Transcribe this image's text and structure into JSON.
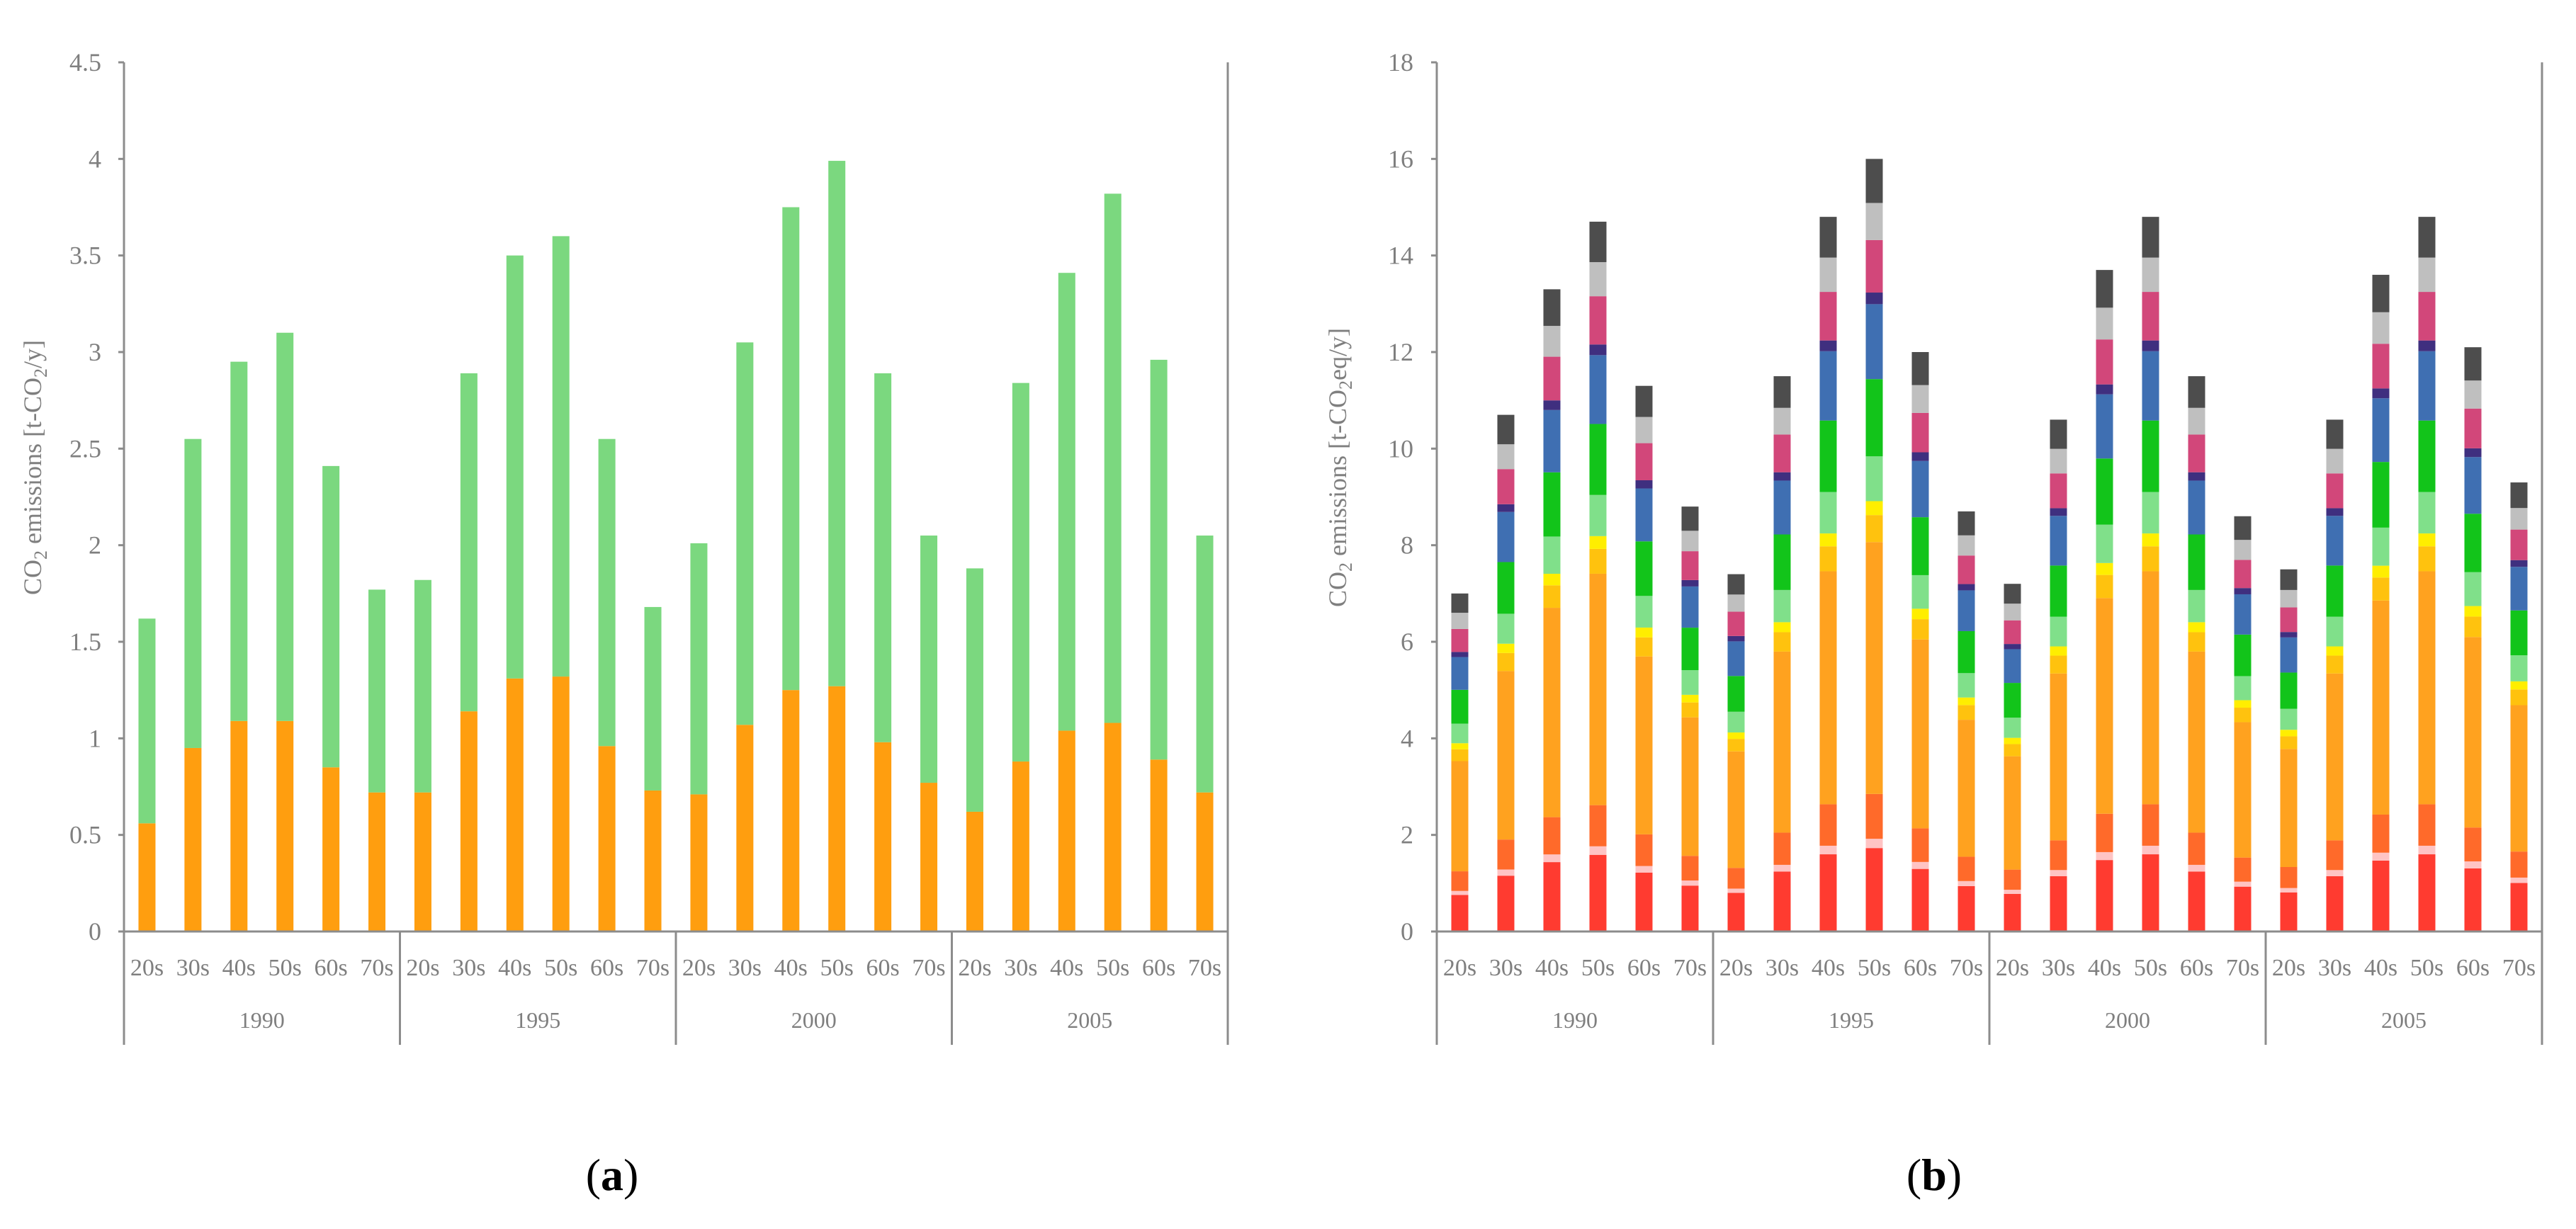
{
  "figure": {
    "panels": [
      {
        "id": "a",
        "label_open": "(",
        "label_letter": "a",
        "label_close": ")",
        "ylabel_co": "CO",
        "ylabel_sub": "2",
        "ylabel_mid": " emissions [t-CO",
        "ylabel_sub2": "2",
        "ylabel_end": "/y]"
      },
      {
        "id": "b",
        "label_open": "(",
        "label_letter": "b",
        "label_close": ")",
        "ylabel_co": "CO",
        "ylabel_sub": "2",
        "ylabel_mid": " emissions [t-CO",
        "ylabel_sub2": "2",
        "ylabel_end": "eq/y]"
      }
    ]
  },
  "chart_data": [
    {
      "type": "bar",
      "stacked": true,
      "title": "",
      "xlabel": "",
      "ylabel": "CO2 emissions [t-CO2/y]",
      "ylim": [
        0,
        4.5
      ],
      "yticks": [
        "0",
        "0.5",
        "1",
        "1.5",
        "2",
        "2.5",
        "3",
        "3.5",
        "4",
        "4.5"
      ],
      "ytick_values": [
        0,
        0.5,
        1,
        1.5,
        2,
        2.5,
        3,
        3.5,
        4,
        4.5
      ],
      "groups": [
        "1990",
        "1995",
        "2000",
        "2005"
      ],
      "categories": [
        "20s",
        "30s",
        "40s",
        "50s",
        "60s",
        "70s"
      ],
      "colors": [
        "#ff9e0f",
        "#7bd87f"
      ],
      "series": [
        {
          "name": "",
          "values": [
            [
              0.56,
              0.95,
              1.09,
              1.09,
              0.85,
              0.72
            ],
            [
              0.72,
              1.14,
              1.31,
              1.32,
              0.96,
              0.73
            ],
            [
              0.71,
              1.07,
              1.25,
              1.27,
              0.98,
              0.77
            ],
            [
              0.62,
              0.88,
              1.04,
              1.08,
              0.89,
              0.72
            ]
          ]
        },
        {
          "name": "",
          "values": [
            [
              1.06,
              1.6,
              1.86,
              2.01,
              1.56,
              1.05
            ],
            [
              1.1,
              1.75,
              2.19,
              2.28,
              1.59,
              0.95
            ],
            [
              1.3,
              1.98,
              2.5,
              2.72,
              1.91,
              1.28
            ],
            [
              1.26,
              1.96,
              2.37,
              2.74,
              2.07,
              1.33
            ]
          ]
        }
      ],
      "totals": [
        [
          1.62,
          2.55,
          2.95,
          3.1,
          2.41,
          1.77
        ],
        [
          1.82,
          2.89,
          3.5,
          3.6,
          2.55,
          1.68
        ],
        [
          2.01,
          3.05,
          3.75,
          3.99,
          2.89,
          2.05
        ],
        [
          1.88,
          2.84,
          3.41,
          3.82,
          2.96,
          2.05
        ]
      ]
    },
    {
      "type": "bar",
      "stacked": true,
      "title": "",
      "xlabel": "",
      "ylabel": "CO2 emissions [t-CO2eq/y]",
      "ylim": [
        0,
        18
      ],
      "yticks": [
        "0",
        "2",
        "4",
        "6",
        "8",
        "10",
        "12",
        "14",
        "16",
        "18"
      ],
      "ytick_values": [
        0,
        2,
        4,
        6,
        8,
        10,
        12,
        14,
        16,
        18
      ],
      "groups": [
        "1990",
        "1995",
        "2000",
        "2005"
      ],
      "categories": [
        "20s",
        "30s",
        "40s",
        "50s",
        "60s",
        "70s"
      ],
      "colors": [
        "#ff3b30",
        "#ffc4c4",
        "#ff6a2a",
        "#ffa21f",
        "#ffc20e",
        "#ffee00",
        "#80e08a",
        "#12c41a",
        "#3f6fb2",
        "#3f2f7f",
        "#d2477a",
        "#bfbfbf",
        "#4d4d4d"
      ],
      "segment_fractions": [
        0.108,
        0.012,
        0.058,
        0.326,
        0.035,
        0.018,
        0.058,
        0.1,
        0.097,
        0.015,
        0.068,
        0.048,
        0.057
      ],
      "totals": [
        [
          7.0,
          10.7,
          13.3,
          14.7,
          11.3,
          8.8
        ],
        [
          7.4,
          11.5,
          14.8,
          16.0,
          12.0,
          8.7
        ],
        [
          7.2,
          10.6,
          13.7,
          14.8,
          11.5,
          8.6
        ],
        [
          7.5,
          10.6,
          13.6,
          14.8,
          12.1,
          9.3
        ]
      ],
      "totals_note": "segment colors represent unlabeled emission categories; totals read from chart"
    }
  ]
}
